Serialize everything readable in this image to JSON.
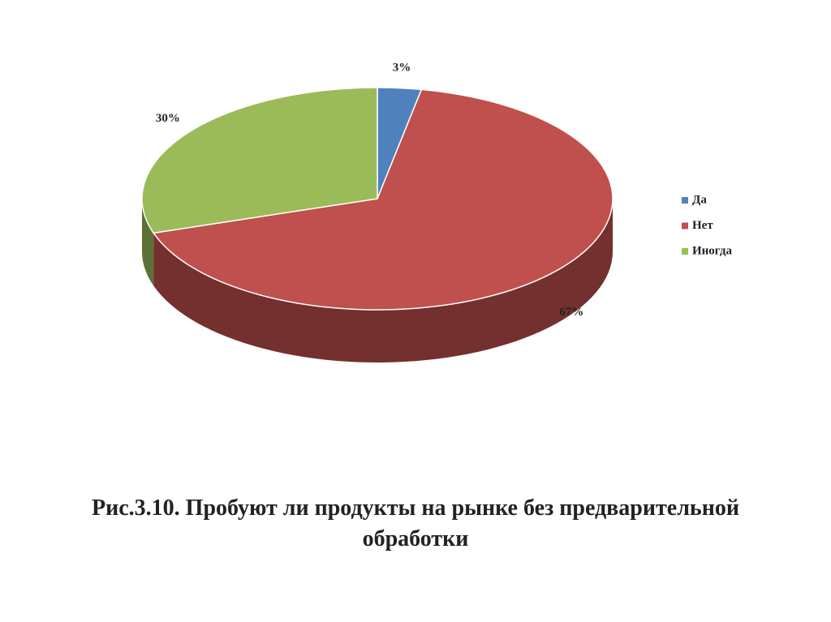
{
  "chart_data": {
    "type": "pie",
    "title": "Рис.3.10. Пробуют ли продукты на рынке без предварительной обработки",
    "categories": [
      "Да",
      "Нет",
      "Иногда"
    ],
    "values": [
      3,
      67,
      30
    ],
    "value_labels": [
      "3%",
      "67%",
      "30%"
    ],
    "colors": [
      "#4f81bd",
      "#c0504d",
      "#9bbb59"
    ],
    "legend": "right"
  }
}
